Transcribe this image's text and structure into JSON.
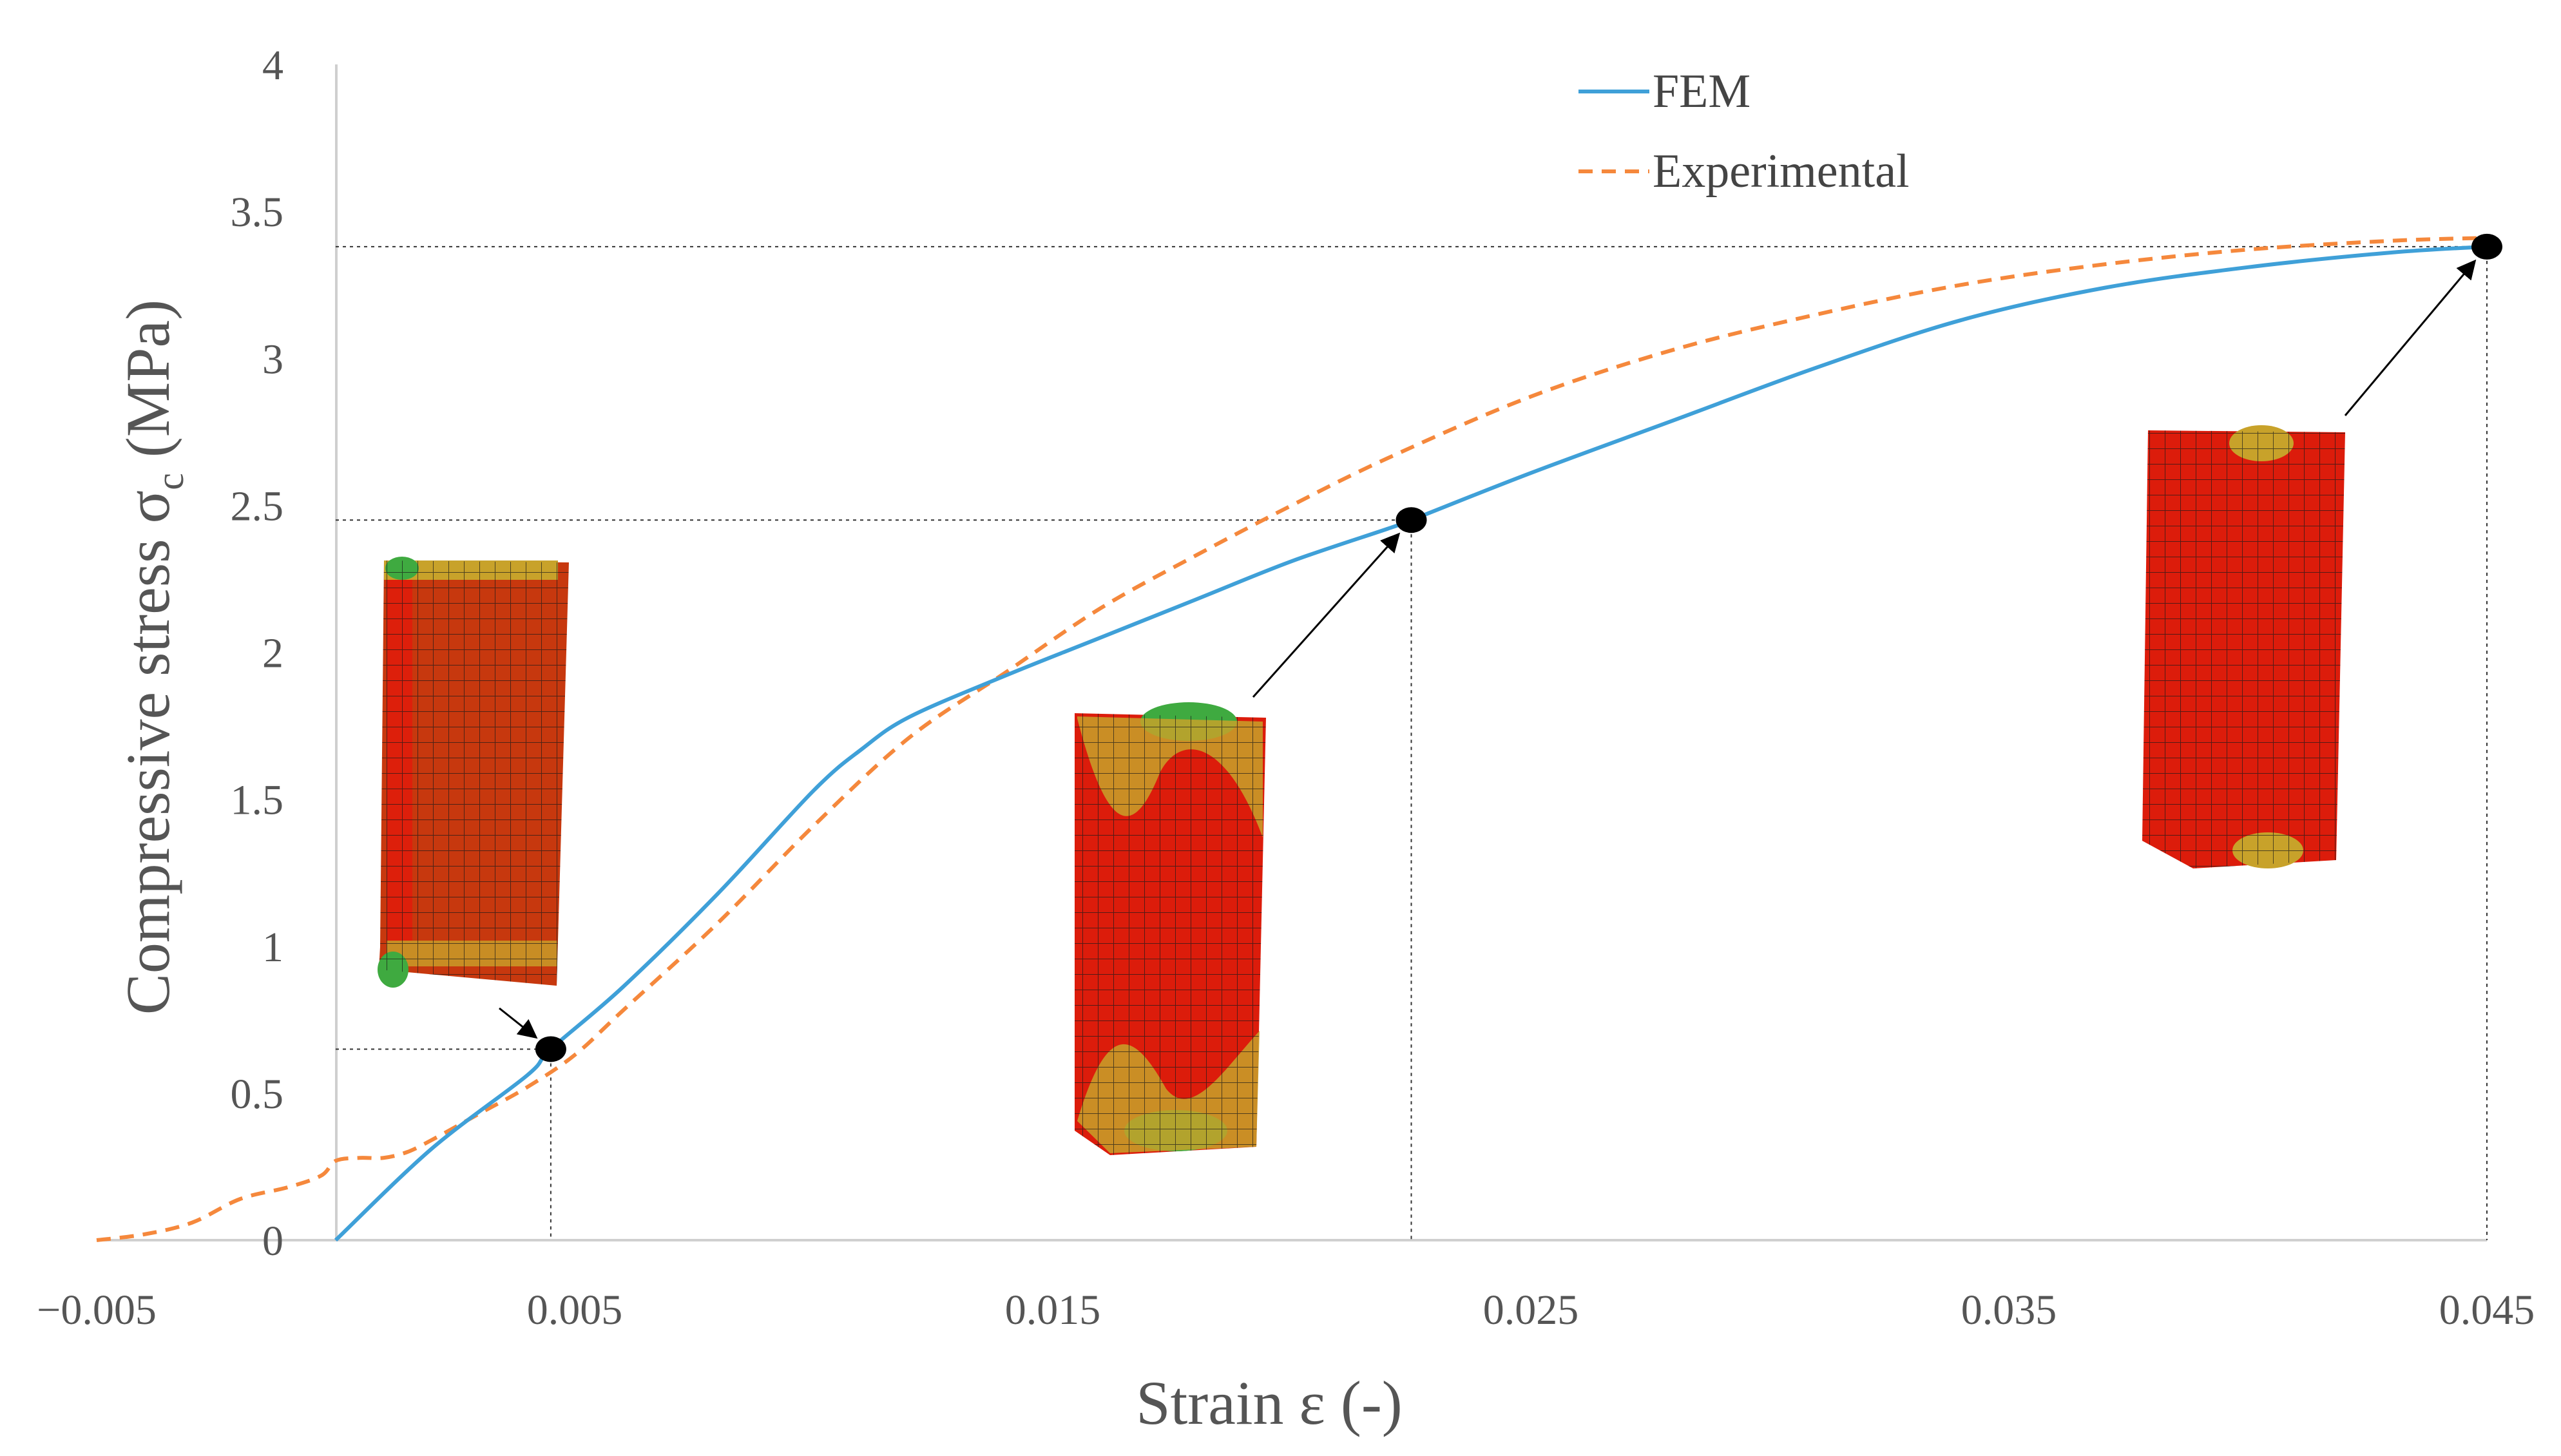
{
  "chart_data": {
    "type": "line",
    "xlabel": "Strain ε (-)",
    "ylabel_main": "Compressive stress σ",
    "ylabel_sub": "c",
    "ylabel_unit": " (MPa)",
    "xlim": [
      -0.005,
      0.045
    ],
    "ylim": [
      0,
      4
    ],
    "x_ticks": [
      {
        "value": -0.005,
        "label": "−0.005"
      },
      {
        "value": 0.005,
        "label": "0.005"
      },
      {
        "value": 0.015,
        "label": "0.015"
      },
      {
        "value": 0.025,
        "label": "0.025"
      },
      {
        "value": 0.035,
        "label": "0.035"
      },
      {
        "value": 0.045,
        "label": "0.045"
      }
    ],
    "y_ticks": [
      {
        "value": 0,
        "label": "0"
      },
      {
        "value": 0.5,
        "label": "0.5"
      },
      {
        "value": 1,
        "label": "1"
      },
      {
        "value": 1.5,
        "label": "1.5"
      },
      {
        "value": 2,
        "label": "2"
      },
      {
        "value": 2.5,
        "label": "2.5"
      },
      {
        "value": 3,
        "label": "3"
      },
      {
        "value": 3.5,
        "label": "3.5"
      },
      {
        "value": 4,
        "label": "4"
      }
    ],
    "grid": false,
    "legend_position": "top-right",
    "series": [
      {
        "name": "FEM",
        "color": "#3fa0d8",
        "style": "solid",
        "x": [
          0,
          0.002,
          0.004,
          0.0045,
          0.006,
          0.008,
          0.01,
          0.011,
          0.012,
          0.014,
          0.016,
          0.018,
          0.02,
          0.022,
          0.0225,
          0.025,
          0.028,
          0.031,
          0.034,
          0.037,
          0.04,
          0.043,
          0.045
        ],
        "y": [
          0,
          0.31,
          0.56,
          0.65,
          0.86,
          1.18,
          1.53,
          1.67,
          1.78,
          1.92,
          2.05,
          2.18,
          2.31,
          2.42,
          2.45,
          2.61,
          2.79,
          2.97,
          3.13,
          3.24,
          3.31,
          3.36,
          3.38
        ]
      },
      {
        "name": "Experimental",
        "color": "#f5883c",
        "style": "dashed",
        "x": [
          -0.005,
          -0.004,
          -0.003,
          -0.002,
          -0.001,
          -0.0003,
          0,
          0.0005,
          0.001,
          0.0015,
          0.002,
          0.003,
          0.004,
          0.005,
          0.006,
          0.008,
          0.01,
          0.012,
          0.014,
          0.016,
          0.018,
          0.02,
          0.022,
          0.025,
          0.028,
          0.031,
          0.034,
          0.037,
          0.04,
          0.043,
          0.045
        ],
        "y": [
          0,
          0.02,
          0.06,
          0.14,
          0.18,
          0.22,
          0.27,
          0.28,
          0.28,
          0.3,
          0.34,
          0.43,
          0.52,
          0.63,
          0.78,
          1.08,
          1.41,
          1.71,
          1.93,
          2.15,
          2.33,
          2.5,
          2.66,
          2.87,
          3.03,
          3.15,
          3.25,
          3.32,
          3.37,
          3.4,
          3.41
        ]
      }
    ],
    "markers": [
      {
        "x": 0.0045,
        "y": 0.65
      },
      {
        "x": 0.0225,
        "y": 2.45
      },
      {
        "x": 0.045,
        "y": 3.38
      }
    ]
  }
}
